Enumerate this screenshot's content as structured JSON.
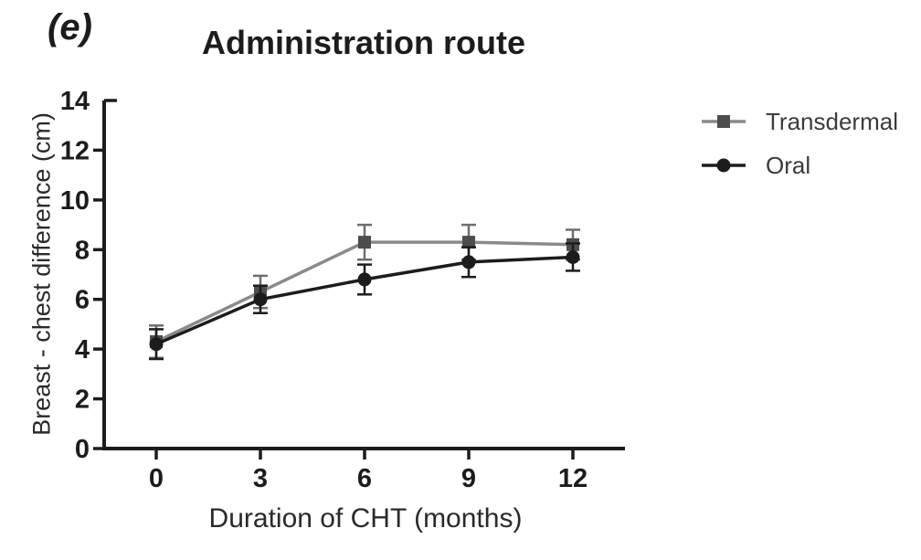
{
  "header": {
    "panel_label": "(e)",
    "title": "Administration route"
  },
  "chart_data": {
    "type": "line",
    "title": "Administration route",
    "xlabel": "Duration of CHT (months)",
    "ylabel": "Breast - chest difference (cm)",
    "x": [
      0,
      3,
      6,
      9,
      12
    ],
    "x_ticks": [
      0,
      3,
      6,
      9,
      12
    ],
    "y_ticks": [
      0,
      2,
      4,
      6,
      8,
      10,
      12,
      14
    ],
    "xlim": [
      -1.5,
      13.5
    ],
    "ylim": [
      0,
      14
    ],
    "grid": false,
    "error_bars": true,
    "legend_position": "right",
    "series": [
      {
        "name": "Transdermal",
        "marker": "square",
        "line_color": "#8a8a8a",
        "marker_color": "#4d4d4d",
        "error_color": "#6e6e6e",
        "values": [
          4.3,
          6.3,
          8.3,
          8.3,
          8.2
        ],
        "errors": [
          0.65,
          0.65,
          0.7,
          0.7,
          0.6
        ]
      },
      {
        "name": "Oral",
        "marker": "circle",
        "line_color": "#1c1c1c",
        "marker_color": "#1c1c1c",
        "error_color": "#1c1c1c",
        "values": [
          4.2,
          6.0,
          6.8,
          7.5,
          7.7
        ],
        "errors": [
          0.6,
          0.55,
          0.6,
          0.6,
          0.55
        ]
      }
    ]
  },
  "colors": {
    "axis": "#1c1c1c",
    "background": "#ffffff",
    "text": "#1c1c1c"
  }
}
